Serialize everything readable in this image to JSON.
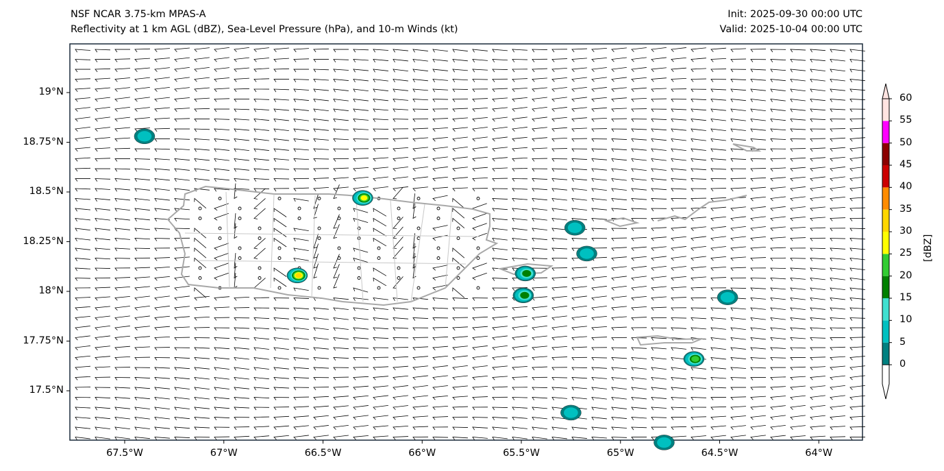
{
  "header": {
    "title_line1": "NSF NCAR 3.75-km MPAS-A",
    "title_line2": "Reflectivity at 1 km AGL (dBZ), Sea-Level Pressure (hPa), and 10-m Winds (kt)",
    "init": "Init: 2025-09-30 00:00 UTC",
    "valid": "Valid: 2025-10-04 00:00 UTC"
  },
  "axes": {
    "x_ticks": [
      "67.5°W",
      "67°W",
      "66.5°W",
      "66°W",
      "65.5°W",
      "65°W",
      "64.5°W",
      "64°W"
    ],
    "y_ticks": [
      "19°N",
      "18.75°N",
      "18.5°N",
      "18.25°N",
      "18°N",
      "17.75°N",
      "17.5°N"
    ]
  },
  "colorbar": {
    "label": "[dBZ]",
    "ticks": [
      "0",
      "5",
      "10",
      "15",
      "20",
      "25",
      "30",
      "35",
      "40",
      "45",
      "50",
      "55",
      "60"
    ],
    "colors": [
      "#008080",
      "#00c0c0",
      "#40e0d0",
      "#008000",
      "#32cd32",
      "#ffff00",
      "#ffd700",
      "#ff8c00",
      "#cc0000",
      "#8b0000",
      "#ff00ff",
      "#ffe4e1"
    ]
  },
  "cells": [
    {
      "lon": -67.4,
      "lat": 18.78,
      "max_dbz": 10
    },
    {
      "lon": -66.3,
      "lat": 18.47,
      "max_dbz": 30
    },
    {
      "lon": -66.63,
      "lat": 18.08,
      "max_dbz": 35
    },
    {
      "lon": -65.23,
      "lat": 18.32,
      "max_dbz": 10
    },
    {
      "lon": -65.17,
      "lat": 18.19,
      "max_dbz": 12
    },
    {
      "lon": -65.48,
      "lat": 18.09,
      "max_dbz": 20
    },
    {
      "lon": -65.49,
      "lat": 17.98,
      "max_dbz": 20
    },
    {
      "lon": -64.46,
      "lat": 17.97,
      "max_dbz": 12
    },
    {
      "lon": -64.63,
      "lat": 17.66,
      "max_dbz": 25
    },
    {
      "lon": -65.25,
      "lat": 17.39,
      "max_dbz": 12
    },
    {
      "lon": -64.78,
      "lat": 17.24,
      "max_dbz": 10
    }
  ]
}
